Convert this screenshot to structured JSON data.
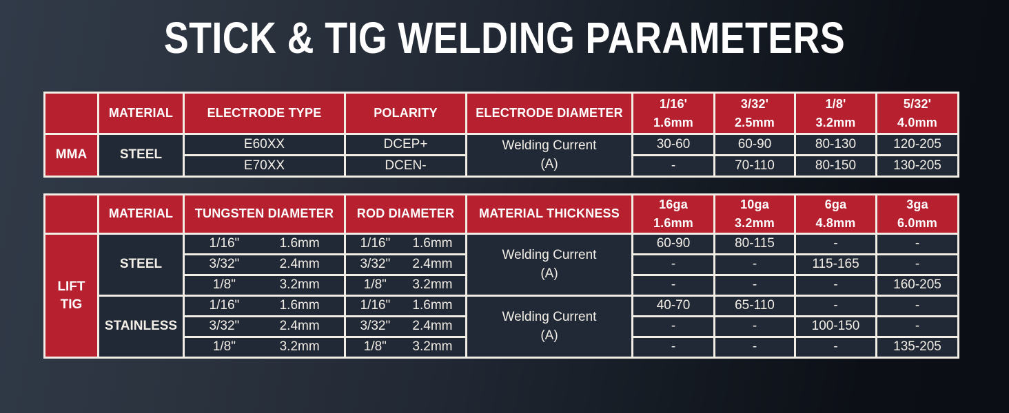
{
  "title": "STICK & TIG WELDING PARAMETERS",
  "colors": {
    "accent_red": "#b7202f",
    "cell_dark": "#212936",
    "border_white": "#f2eee6",
    "text_light": "#f3efe7"
  },
  "table1": {
    "headers": {
      "material": "MATERIAL",
      "electrode_type": "ELECTRODE TYPE",
      "polarity": "POLARITY",
      "electrode_diameter": "ELECTRODE DIAMETER",
      "sizes": [
        {
          "inch": "1/16'",
          "mm": "1.6mm"
        },
        {
          "inch": "3/32'",
          "mm": "2.5mm"
        },
        {
          "inch": "1/8'",
          "mm": "3.2mm"
        },
        {
          "inch": "5/32'",
          "mm": "4.0mm"
        }
      ]
    },
    "process": "MMA",
    "material": "STEEL",
    "welding_current": [
      "Welding Current",
      "(A)"
    ],
    "rows": [
      {
        "electrode": "E60XX",
        "polarity": "DCEP+",
        "currents": [
          "30-60",
          "60-90",
          "80-130",
          "120-205"
        ]
      },
      {
        "electrode": "E70XX",
        "polarity": "DCEN-",
        "currents": [
          "-",
          "70-110",
          "80-150",
          "130-205"
        ]
      }
    ]
  },
  "table2": {
    "headers": {
      "material": "MATERIAL",
      "tungsten_diameter": "TUNGSTEN DIAMETER",
      "rod_diameter": "ROD DIAMETER",
      "material_thickness": "MATERIAL THICKNESS",
      "sizes": [
        {
          "ga": "16ga",
          "mm": "1.6mm"
        },
        {
          "ga": "10ga",
          "mm": "3.2mm"
        },
        {
          "ga": "6ga",
          "mm": "4.8mm"
        },
        {
          "ga": "3ga",
          "mm": "6.0mm"
        }
      ]
    },
    "process": [
      "LIFT",
      "TIG"
    ],
    "groups": [
      {
        "material": "STEEL",
        "welding_current": [
          "Welding Current",
          "(A)"
        ],
        "rows": [
          {
            "tungsten": [
              "1/16\"",
              "1.6mm"
            ],
            "rod": [
              "1/16\"",
              "1.6mm"
            ],
            "currents": [
              "60-90",
              "80-115",
              "-",
              "-"
            ]
          },
          {
            "tungsten": [
              "3/32\"",
              "2.4mm"
            ],
            "rod": [
              "3/32\"",
              "2.4mm"
            ],
            "currents": [
              "-",
              "-",
              "115-165",
              "-"
            ]
          },
          {
            "tungsten": [
              "1/8\"",
              "3.2mm"
            ],
            "rod": [
              "1/8\"",
              "3.2mm"
            ],
            "currents": [
              "-",
              "-",
              "-",
              "160-205"
            ]
          }
        ]
      },
      {
        "material": "STAINLESS",
        "welding_current": [
          "Welding Current",
          "(A)"
        ],
        "rows": [
          {
            "tungsten": [
              "1/16\"",
              "1.6mm"
            ],
            "rod": [
              "1/16\"",
              "1.6mm"
            ],
            "currents": [
              "40-70",
              "65-110",
              "-",
              "-"
            ]
          },
          {
            "tungsten": [
              "3/32\"",
              "2.4mm"
            ],
            "rod": [
              "3/32\"",
              "2.4mm"
            ],
            "currents": [
              "-",
              "-",
              "100-150",
              "-"
            ]
          },
          {
            "tungsten": [
              "1/8\"",
              "3.2mm"
            ],
            "rod": [
              "1/8\"",
              "3.2mm"
            ],
            "currents": [
              "-",
              "-",
              "-",
              "135-205"
            ]
          }
        ]
      }
    ]
  }
}
